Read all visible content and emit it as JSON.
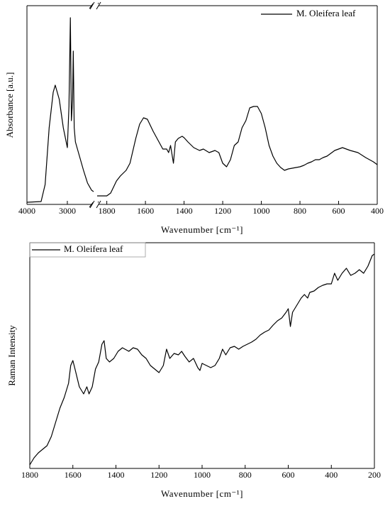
{
  "chart_data": [
    {
      "type": "line",
      "xlabel": "Wavenumber [cm⁻¹]",
      "ylabel": "Absorbance [a.u.]",
      "xlim": [
        4000,
        400
      ],
      "xbreak": [
        2350,
        1850
      ],
      "ylim": [
        0,
        280
      ],
      "xticks": [
        4000,
        3000,
        1800,
        1600,
        1400,
        1200,
        1000,
        800,
        600,
        400
      ],
      "legend": "upper right",
      "x": [
        4000,
        3650,
        3550,
        3450,
        3350,
        3300,
        3200,
        3100,
        3000,
        2960,
        2925,
        2900,
        2870,
        2853,
        2830,
        2800,
        2700,
        2600,
        2500,
        2400,
        2350,
        2100,
        1850,
        1800,
        1780,
        1750,
        1730,
        1700,
        1680,
        1650,
        1630,
        1610,
        1590,
        1560,
        1530,
        1510,
        1490,
        1480,
        1470,
        1455,
        1445,
        1430,
        1410,
        1400,
        1380,
        1350,
        1320,
        1300,
        1270,
        1240,
        1220,
        1200,
        1180,
        1160,
        1140,
        1120,
        1100,
        1080,
        1060,
        1040,
        1020,
        1000,
        980,
        960,
        940,
        920,
        900,
        880,
        860,
        840,
        820,
        800,
        780,
        760,
        740,
        720,
        700,
        680,
        660,
        640,
        620,
        600,
        580,
        560,
        540,
        500,
        460,
        420,
        400
      ],
      "series": [
        {
          "name": "M. Oleifera leaf",
          "color": "#000000",
          "values": [
            3,
            4,
            28,
            108,
            158,
            168,
            148,
            108,
            80,
            138,
            263,
            118,
            148,
            216,
            108,
            88,
            68,
            48,
            30,
            20,
            18,
            null,
            12,
            12,
            16,
            33,
            40,
            48,
            58,
            93,
            113,
            122,
            120,
            103,
            88,
            78,
            78,
            73,
            83,
            58,
            88,
            93,
            96,
            94,
            88,
            80,
            76,
            78,
            73,
            76,
            73,
            58,
            53,
            63,
            83,
            88,
            108,
            118,
            136,
            138,
            138,
            128,
            108,
            83,
            68,
            58,
            52,
            48,
            50,
            51,
            52,
            53,
            55,
            58,
            60,
            63,
            63,
            66,
            68,
            72,
            76,
            78,
            80,
            78,
            76,
            73,
            66,
            60,
            56
          ]
        }
      ]
    },
    {
      "type": "line",
      "xlabel": "Wavenumber [cm⁻¹]",
      "ylabel": "Raman Intensity",
      "xlim": [
        1800,
        200
      ],
      "ylim": [
        0,
        318
      ],
      "xticks": [
        1800,
        1600,
        1400,
        1200,
        1000,
        800,
        600,
        400,
        200
      ],
      "legend": "upper left",
      "x": [
        1800,
        1780,
        1760,
        1740,
        1720,
        1700,
        1680,
        1660,
        1640,
        1620,
        1610,
        1600,
        1590,
        1570,
        1550,
        1535,
        1525,
        1510,
        1495,
        1480,
        1465,
        1455,
        1445,
        1430,
        1410,
        1390,
        1370,
        1340,
        1320,
        1300,
        1280,
        1260,
        1240,
        1220,
        1200,
        1180,
        1165,
        1150,
        1130,
        1110,
        1095,
        1080,
        1060,
        1040,
        1020,
        1010,
        1000,
        980,
        960,
        940,
        920,
        905,
        890,
        870,
        850,
        830,
        810,
        790,
        770,
        750,
        730,
        710,
        690,
        670,
        650,
        630,
        610,
        600,
        590,
        580,
        560,
        540,
        525,
        510,
        500,
        480,
        460,
        440,
        420,
        400,
        385,
        370,
        350,
        330,
        310,
        290,
        270,
        250,
        230,
        210,
        200
      ],
      "series": [
        {
          "name": "M. Oleifera leaf",
          "color": "#000000",
          "values": [
            5,
            15,
            22,
            27,
            32,
            45,
            65,
            85,
            100,
            120,
            145,
            152,
            140,
            115,
            105,
            115,
            105,
            115,
            140,
            150,
            175,
            180,
            155,
            150,
            155,
            165,
            170,
            165,
            170,
            168,
            160,
            155,
            145,
            140,
            135,
            145,
            168,
            155,
            162,
            160,
            165,
            158,
            150,
            155,
            142,
            138,
            148,
            145,
            142,
            145,
            155,
            168,
            160,
            170,
            172,
            168,
            172,
            175,
            178,
            182,
            188,
            192,
            195,
            202,
            208,
            212,
            220,
            225,
            200,
            220,
            230,
            240,
            245,
            240,
            248,
            250,
            255,
            258,
            260,
            260,
            275,
            265,
            275,
            282,
            272,
            275,
            280,
            275,
            285,
            300,
            302
          ]
        }
      ]
    }
  ]
}
